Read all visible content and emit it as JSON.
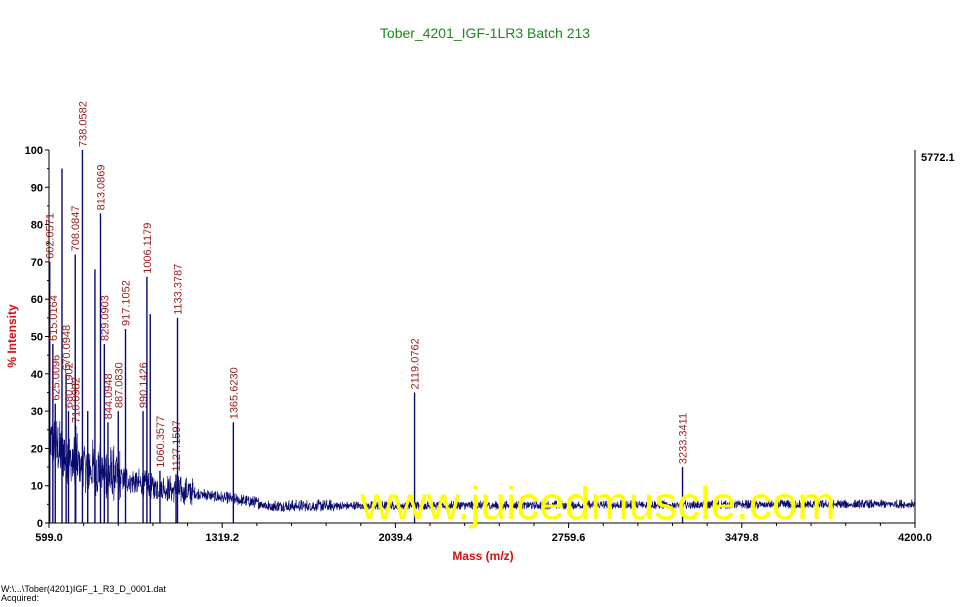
{
  "chart_data": {
    "type": "line",
    "title": "Tober_4201_IGF-1LR3 Batch 213",
    "xlabel": "Mass (m/z)",
    "ylabel": "% Intensity",
    "xlim": [
      599.0,
      4200.0
    ],
    "ylim": [
      0,
      100
    ],
    "x_ticks": [
      "599.0",
      "1319.2",
      "2039.4",
      "2759.6",
      "3479.8",
      "4200.0"
    ],
    "y_ticks": [
      "0",
      "10",
      "20",
      "30",
      "40",
      "50",
      "60",
      "70",
      "80",
      "90",
      "100"
    ],
    "max_intensity_label": "5772.1",
    "colors": {
      "title": "#1a8a1a",
      "axis_label": "#d01010",
      "trace": "#0a0a6e",
      "peak_label": "#9b1b1b",
      "watermark": "#ffff00"
    },
    "peaks": [
      {
        "mass": 602.0571,
        "intensity": 70,
        "label": "602.0571"
      },
      {
        "mass": 615.0164,
        "intensity": 48,
        "label": "615.0164"
      },
      {
        "mass": 625.0,
        "intensity": 32,
        "label": "625.0096"
      },
      {
        "mass": 653.0,
        "intensity": 95,
        "label": ""
      },
      {
        "mass": 670.0948,
        "intensity": 40,
        "label": "670.0948"
      },
      {
        "mass": 680.0,
        "intensity": 30,
        "label": "680.1902"
      },
      {
        "mass": 708.0847,
        "intensity": 72,
        "label": "708.0847"
      },
      {
        "mass": 710.0,
        "intensity": 26,
        "label": "710.0982"
      },
      {
        "mass": 738.0582,
        "intensity": 100,
        "label": "738.0582"
      },
      {
        "mass": 760.0,
        "intensity": 30,
        "label": ""
      },
      {
        "mass": 790.0,
        "intensity": 68,
        "label": ""
      },
      {
        "mass": 813.0869,
        "intensity": 83,
        "label": "813.0869"
      },
      {
        "mass": 829.0903,
        "intensity": 48,
        "label": "829.0903"
      },
      {
        "mass": 844.0948,
        "intensity": 27,
        "label": "844.0948"
      },
      {
        "mass": 887.0,
        "intensity": 30,
        "label": "887.0830"
      },
      {
        "mass": 917.1052,
        "intensity": 52,
        "label": "917.1052"
      },
      {
        "mass": 990.1426,
        "intensity": 30,
        "label": "990.1426"
      },
      {
        "mass": 1006.1179,
        "intensity": 66,
        "label": "1006.1179"
      },
      {
        "mass": 1020.0,
        "intensity": 56,
        "label": ""
      },
      {
        "mass": 1060.3577,
        "intensity": 14,
        "label": "1060.3577"
      },
      {
        "mass": 1127.1597,
        "intensity": 13,
        "label": "1127.1597"
      },
      {
        "mass": 1133.3787,
        "intensity": 55,
        "label": "1133.3787"
      },
      {
        "mass": 1365.623,
        "intensity": 27,
        "label": "1365.6230"
      },
      {
        "mass": 2119.0762,
        "intensity": 35,
        "label": "2119.0762"
      },
      {
        "mass": 3233.3411,
        "intensity": 15,
        "label": "3233.3411"
      }
    ]
  },
  "watermark": "www.juicedmuscle.com",
  "footer": {
    "file_path": "W:\\...\\Tober(4201)IGF_1_R3_D_0001.dat",
    "acquired": "Acquired:"
  }
}
